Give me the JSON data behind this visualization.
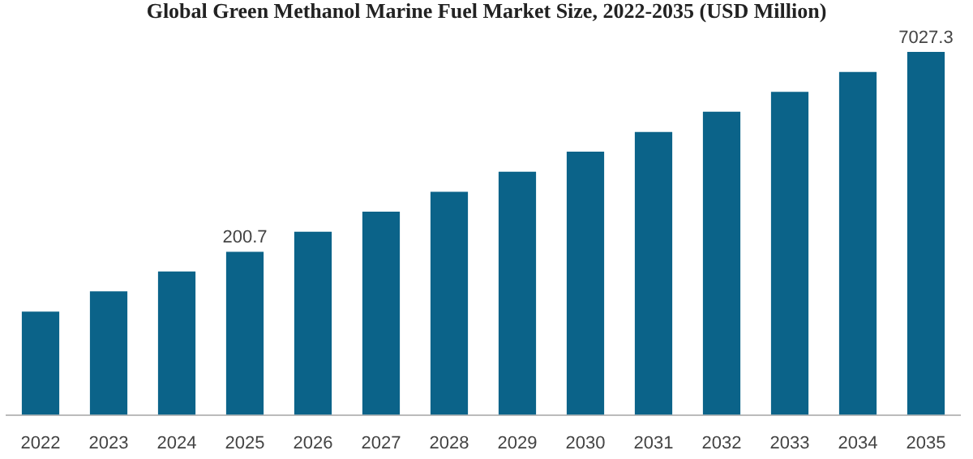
{
  "chart_data": {
    "type": "bar",
    "title": "Global Green Methanol Marine Fuel Market Size, 2022-2035 (USD Million)",
    "categories": [
      "2022",
      "2023",
      "2024",
      "2025",
      "2026",
      "2027",
      "2028",
      "2029",
      "2030",
      "2031",
      "2032",
      "2033",
      "2034",
      "2035"
    ],
    "values": [
      69,
      99,
      141,
      200.7,
      286,
      409,
      583,
      832,
      1190,
      1690,
      2420,
      3450,
      4920,
      7027.3
    ],
    "value_labels": [
      null,
      null,
      null,
      "200.7",
      null,
      null,
      null,
      null,
      null,
      null,
      null,
      null,
      null,
      "7027.3"
    ],
    "color": "#0b6389",
    "log": true,
    "ylim": [
      11,
      7027.3
    ],
    "tick_labels": "x"
  }
}
